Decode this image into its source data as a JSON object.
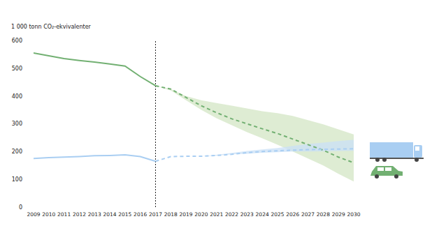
{
  "chart_data": {
    "type": "line",
    "y_label": "1 000 tonn CO₂-ekvivalenter",
    "x": [
      2009,
      2010,
      2011,
      2012,
      2013,
      2014,
      2015,
      2016,
      2017,
      2018,
      2019,
      2020,
      2021,
      2022,
      2023,
      2024,
      2025,
      2026,
      2027,
      2028,
      2029,
      2030
    ],
    "xlim": [
      2009,
      2030
    ],
    "xticks": [
      2009,
      2010,
      2011,
      2012,
      2013,
      2014,
      2015,
      2016,
      2017,
      2018,
      2019,
      2020,
      2021,
      2022,
      2023,
      2024,
      2025,
      2026,
      2027,
      2028,
      2029,
      2030
    ],
    "ylim": [
      0,
      600
    ],
    "yticks": [
      0,
      100,
      200,
      300,
      400,
      500,
      600
    ],
    "grid": false,
    "vline": 2017,
    "series": [
      {
        "color": "#72b072",
        "line_style": "solid",
        "values": [
          555,
          545,
          535,
          528,
          522,
          515,
          508,
          470,
          437,
          null,
          null,
          null,
          null,
          null,
          null,
          null,
          null,
          null,
          null,
          null,
          null,
          null
        ]
      },
      {
        "color": "#72b072",
        "line_style": "dashed",
        "values": [
          null,
          null,
          null,
          null,
          null,
          null,
          null,
          null,
          437,
          425,
          395,
          365,
          340,
          318,
          300,
          282,
          265,
          245,
          225,
          205,
          180,
          160
        ],
        "lower": [
          null,
          null,
          null,
          null,
          null,
          null,
          null,
          null,
          437,
          420,
          385,
          350,
          320,
          295,
          270,
          248,
          225,
          200,
          175,
          150,
          120,
          92
        ],
        "upper": [
          null,
          null,
          null,
          null,
          null,
          null,
          null,
          null,
          437,
          425,
          400,
          385,
          375,
          365,
          355,
          345,
          338,
          328,
          313,
          298,
          280,
          262
        ],
        "band_color": "#d3e6c4"
      },
      {
        "color": "#a9cef2",
        "line_style": "solid",
        "values": [
          175,
          178,
          180,
          182,
          185,
          186,
          188,
          182,
          165,
          null,
          null,
          null,
          null,
          null,
          null,
          null,
          null,
          null,
          null,
          null,
          null,
          null
        ]
      },
      {
        "color": "#a9cef2",
        "line_style": "dashed",
        "values": [
          null,
          null,
          null,
          null,
          null,
          null,
          null,
          null,
          165,
          182,
          183,
          183,
          186,
          190,
          196,
          200,
          203,
          205,
          207,
          208,
          209,
          210
        ],
        "lower": [
          null,
          null,
          null,
          null,
          null,
          null,
          null,
          null,
          null,
          null,
          null,
          183,
          185,
          190,
          192,
          196,
          198,
          200,
          200,
          201,
          202,
          203
        ],
        "upper": [
          null,
          null,
          null,
          null,
          null,
          null,
          null,
          null,
          null,
          null,
          null,
          183,
          188,
          195,
          202,
          208,
          213,
          220,
          227,
          232,
          238,
          242
        ],
        "band_color": "#c9e0f7"
      }
    ]
  }
}
